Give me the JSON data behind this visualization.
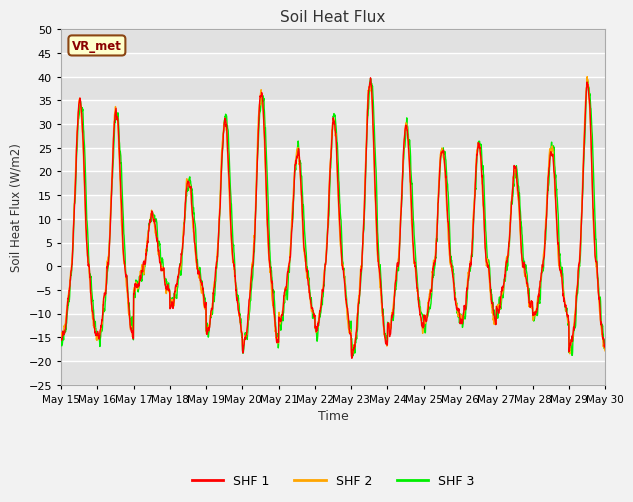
{
  "title": "Soil Heat Flux",
  "xlabel": "Time",
  "ylabel": "Soil Heat Flux (W/m2)",
  "ylim": [
    -25,
    50
  ],
  "yticks": [
    -25,
    -20,
    -15,
    -10,
    -5,
    0,
    5,
    10,
    15,
    20,
    25,
    30,
    35,
    40,
    45,
    50
  ],
  "annotation_text": "VR_met",
  "annotation_bbox_facecolor": "#FFFFCC",
  "annotation_bbox_edgecolor": "#8B4513",
  "legend_labels": [
    "SHF 1",
    "SHF 2",
    "SHF 3"
  ],
  "line_colors": [
    "#FF0000",
    "#FFA500",
    "#00EE00"
  ],
  "line_width": 1.0,
  "fig_facecolor": "#F2F2F2",
  "plot_bg_color": "#E8E8E8",
  "grid_color": "#FFFFFF",
  "n_days": 15,
  "points_per_day": 144,
  "seed": 12345,
  "tick_labels": [
    "May 15",
    "May 16",
    "May 17",
    "May 18",
    "May 19",
    "May 20",
    "May 21",
    "May 22",
    "May 23",
    "May 24",
    "May 25",
    "May 26",
    "May 27",
    "May 28",
    "May 29",
    "May 30"
  ],
  "day_peak_amps": [
    35,
    33,
    11,
    18,
    31,
    37,
    25,
    31,
    40,
    30,
    25,
    26,
    20,
    25,
    39
  ]
}
